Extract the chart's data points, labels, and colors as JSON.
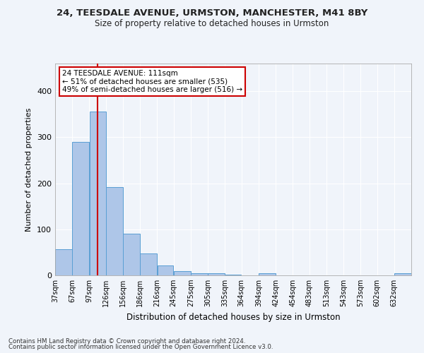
{
  "title": "24, TEESDALE AVENUE, URMSTON, MANCHESTER, M41 8BY",
  "subtitle": "Size of property relative to detached houses in Urmston",
  "xlabel": "Distribution of detached houses by size in Urmston",
  "ylabel": "Number of detached properties",
  "footer1": "Contains HM Land Registry data © Crown copyright and database right 2024.",
  "footer2": "Contains public sector information licensed under the Open Government Licence v3.0.",
  "bar_color": "#aec6e8",
  "bar_edge_color": "#5a9fd4",
  "vline_color": "#cc0000",
  "vline_value": 111,
  "annotation_title": "24 TEESDALE AVENUE: 111sqm",
  "annotation_line1": "← 51% of detached houses are smaller (535)",
  "annotation_line2": "49% of semi-detached houses are larger (516) →",
  "annotation_box_color": "#ffffff",
  "annotation_box_edge": "#cc0000",
  "categories": [
    "37sqm",
    "67sqm",
    "97sqm",
    "126sqm",
    "156sqm",
    "186sqm",
    "216sqm",
    "245sqm",
    "275sqm",
    "305sqm",
    "335sqm",
    "364sqm",
    "394sqm",
    "424sqm",
    "454sqm",
    "483sqm",
    "513sqm",
    "543sqm",
    "573sqm",
    "602sqm",
    "632sqm"
  ],
  "values": [
    57,
    290,
    355,
    192,
    91,
    47,
    21,
    9,
    5,
    4,
    1,
    0,
    4,
    0,
    0,
    0,
    0,
    0,
    0,
    0,
    4
  ],
  "ylim": [
    0,
    460
  ],
  "background_color": "#f0f4fa",
  "grid_color": "#ffffff",
  "bin_edges": [
    37,
    67,
    97,
    126,
    156,
    186,
    216,
    245,
    275,
    305,
    335,
    364,
    394,
    424,
    454,
    483,
    513,
    543,
    573,
    602,
    632,
    662
  ]
}
